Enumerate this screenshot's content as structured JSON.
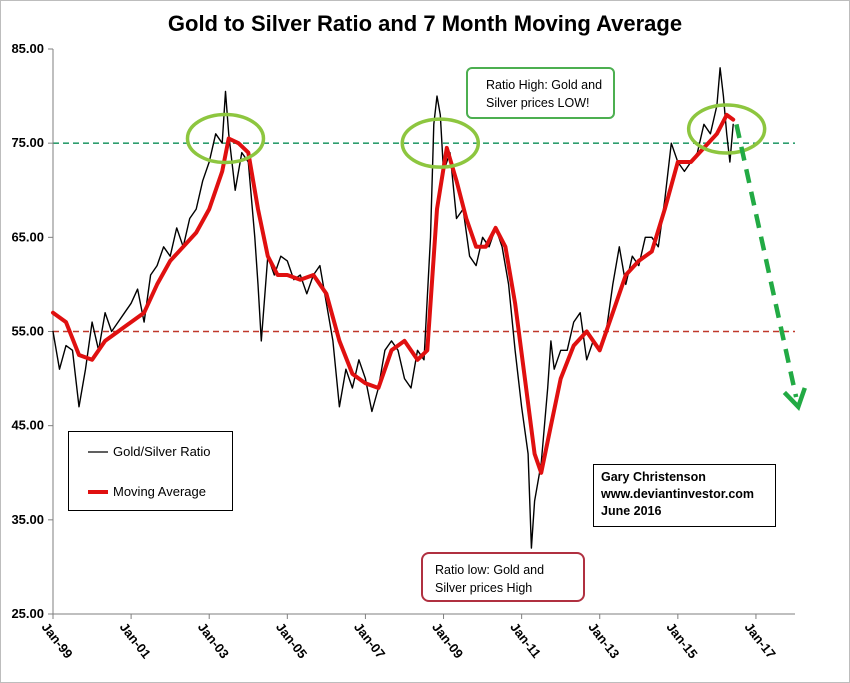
{
  "chart_data": {
    "type": "line",
    "title": "Gold to Silver Ratio and 7 Month Moving Average",
    "ylim": [
      25,
      85
    ],
    "y_ticks": [
      "25.00",
      "35.00",
      "45.00",
      "55.00",
      "65.00",
      "75.00",
      "85.00"
    ],
    "x_ticks": [
      "Jan-99",
      "Jan-01",
      "Jan-03",
      "Jan-05",
      "Jan-07",
      "Jan-09",
      "Jan-11",
      "Jan-13",
      "Jan-15",
      "Jan-17"
    ],
    "x_range": [
      "Jan-99",
      "Jan-18"
    ],
    "reference_lines": [
      {
        "value": 75,
        "color": "#2e9e6e",
        "style": "dashed"
      },
      {
        "value": 55,
        "color": "#c0392b",
        "style": "dashed"
      }
    ],
    "series": [
      {
        "name": "Gold/Silver Ratio",
        "color": "#000000",
        "points": [
          [
            "Jan-99",
            55
          ],
          [
            "Mar-99",
            51
          ],
          [
            "May-99",
            53.5
          ],
          [
            "Jul-99",
            53
          ],
          [
            "Sep-99",
            47
          ],
          [
            "Nov-99",
            51
          ],
          [
            "Jan-00",
            56
          ],
          [
            "Mar-00",
            53
          ],
          [
            "May-00",
            57
          ],
          [
            "Jul-00",
            55
          ],
          [
            "Sep-00",
            56
          ],
          [
            "Nov-00",
            57
          ],
          [
            "Jan-01",
            58
          ],
          [
            "Mar-01",
            59.5
          ],
          [
            "May-01",
            56
          ],
          [
            "Jul-01",
            61
          ],
          [
            "Sep-01",
            62
          ],
          [
            "Nov-01",
            64
          ],
          [
            "Jan-02",
            63
          ],
          [
            "Mar-02",
            66
          ],
          [
            "May-02",
            64
          ],
          [
            "Jul-02",
            67
          ],
          [
            "Sep-02",
            68
          ],
          [
            "Nov-02",
            71
          ],
          [
            "Jan-03",
            73
          ],
          [
            "Mar-03",
            76
          ],
          [
            "May-03",
            75
          ],
          [
            "Jun-03",
            80.5
          ],
          [
            "Jul-03",
            76
          ],
          [
            "Sep-03",
            70
          ],
          [
            "Nov-03",
            74
          ],
          [
            "Jan-04",
            73
          ],
          [
            "Mar-04",
            65
          ],
          [
            "Apr-04",
            60
          ],
          [
            "May-04",
            54
          ],
          [
            "Jul-04",
            63
          ],
          [
            "Sep-04",
            61
          ],
          [
            "Nov-04",
            63
          ],
          [
            "Jan-05",
            62.5
          ],
          [
            "Mar-05",
            60.5
          ],
          [
            "May-05",
            61
          ],
          [
            "Jul-05",
            59
          ],
          [
            "Sep-05",
            61
          ],
          [
            "Nov-05",
            62
          ],
          [
            "Jan-06",
            58
          ],
          [
            "Mar-06",
            54
          ],
          [
            "May-06",
            47
          ],
          [
            "Jul-06",
            51
          ],
          [
            "Sep-06",
            49
          ],
          [
            "Nov-06",
            52
          ],
          [
            "Jan-07",
            50
          ],
          [
            "Mar-07",
            46.5
          ],
          [
            "May-07",
            49
          ],
          [
            "Jul-07",
            53
          ],
          [
            "Sep-07",
            54
          ],
          [
            "Nov-07",
            53
          ],
          [
            "Jan-08",
            50
          ],
          [
            "Mar-08",
            49
          ],
          [
            "May-08",
            53
          ],
          [
            "Jul-08",
            52
          ],
          [
            "Sep-08",
            65
          ],
          [
            "Oct-08",
            77
          ],
          [
            "Nov-08",
            80
          ],
          [
            "Dec-08",
            78
          ],
          [
            "Jan-09",
            72
          ],
          [
            "Mar-09",
            74
          ],
          [
            "May-09",
            67
          ],
          [
            "Jul-09",
            68
          ],
          [
            "Sep-09",
            63
          ],
          [
            "Nov-09",
            62
          ],
          [
            "Jan-10",
            65
          ],
          [
            "Mar-10",
            64
          ],
          [
            "May-10",
            66
          ],
          [
            "Jul-10",
            64
          ],
          [
            "Sep-10",
            60
          ],
          [
            "Nov-10",
            53
          ],
          [
            "Jan-11",
            47
          ],
          [
            "Mar-11",
            42
          ],
          [
            "Apr-11",
            32
          ],
          [
            "May-11",
            37
          ],
          [
            "Jul-11",
            41
          ],
          [
            "Sep-11",
            49
          ],
          [
            "Oct-11",
            54
          ],
          [
            "Nov-11",
            51
          ],
          [
            "Jan-12",
            53
          ],
          [
            "Mar-12",
            53
          ],
          [
            "May-12",
            56
          ],
          [
            "Jul-12",
            57
          ],
          [
            "Sep-12",
            52
          ],
          [
            "Nov-12",
            54
          ],
          [
            "Jan-13",
            53
          ],
          [
            "Mar-13",
            55
          ],
          [
            "May-13",
            60
          ],
          [
            "Jul-13",
            64
          ],
          [
            "Sep-13",
            60
          ],
          [
            "Nov-13",
            63
          ],
          [
            "Jan-14",
            62
          ],
          [
            "Mar-14",
            65
          ],
          [
            "May-14",
            65
          ],
          [
            "Jul-14",
            64
          ],
          [
            "Sep-14",
            69
          ],
          [
            "Nov-14",
            75
          ],
          [
            "Jan-15",
            73
          ],
          [
            "Mar-15",
            72
          ],
          [
            "May-15",
            73
          ],
          [
            "Jul-15",
            74
          ],
          [
            "Sep-15",
            77
          ],
          [
            "Nov-15",
            76
          ],
          [
            "Jan-16",
            79
          ],
          [
            "Feb-16",
            83
          ],
          [
            "Mar-16",
            80
          ],
          [
            "Apr-16",
            76
          ],
          [
            "May-16",
            73
          ],
          [
            "Jun-16",
            77
          ]
        ]
      },
      {
        "name": "Moving Average",
        "color": "#e01010",
        "points": [
          [
            "Jan-99",
            57
          ],
          [
            "May-99",
            56
          ],
          [
            "Sep-99",
            52.5
          ],
          [
            "Jan-00",
            52
          ],
          [
            "May-00",
            54
          ],
          [
            "Sep-00",
            55
          ],
          [
            "Jan-01",
            56
          ],
          [
            "May-01",
            57
          ],
          [
            "Sep-01",
            60
          ],
          [
            "Jan-02",
            62.5
          ],
          [
            "May-02",
            64
          ],
          [
            "Sep-02",
            65.5
          ],
          [
            "Jan-03",
            68
          ],
          [
            "May-03",
            72
          ],
          [
            "Jul-03",
            75.5
          ],
          [
            "Oct-03",
            75
          ],
          [
            "Jan-04",
            74
          ],
          [
            "Apr-04",
            68
          ],
          [
            "Jul-04",
            63
          ],
          [
            "Oct-04",
            61
          ],
          [
            "Jan-05",
            61
          ],
          [
            "May-05",
            60.5
          ],
          [
            "Sep-05",
            61
          ],
          [
            "Jan-06",
            59
          ],
          [
            "May-06",
            54
          ],
          [
            "Sep-06",
            50.5
          ],
          [
            "Jan-07",
            49.5
          ],
          [
            "May-07",
            49
          ],
          [
            "Sep-07",
            53
          ],
          [
            "Jan-08",
            54
          ],
          [
            "May-08",
            52
          ],
          [
            "Aug-08",
            53
          ],
          [
            "Nov-08",
            68
          ],
          [
            "Feb-09",
            74.5
          ],
          [
            "May-09",
            71
          ],
          [
            "Aug-09",
            67
          ],
          [
            "Nov-09",
            64
          ],
          [
            "Feb-10",
            64
          ],
          [
            "May-10",
            66
          ],
          [
            "Aug-10",
            64
          ],
          [
            "Nov-10",
            58
          ],
          [
            "Feb-11",
            50
          ],
          [
            "May-11",
            42
          ],
          [
            "Jul-11",
            40
          ],
          [
            "Oct-11",
            45
          ],
          [
            "Jan-12",
            50
          ],
          [
            "May-12",
            53.5
          ],
          [
            "Sep-12",
            55
          ],
          [
            "Jan-13",
            53
          ],
          [
            "May-13",
            57
          ],
          [
            "Sep-13",
            61
          ],
          [
            "Jan-14",
            62.5
          ],
          [
            "May-14",
            63.5
          ],
          [
            "Sep-14",
            68
          ],
          [
            "Jan-15",
            73
          ],
          [
            "May-15",
            73
          ],
          [
            "Sep-15",
            74.5
          ],
          [
            "Jan-16",
            76
          ],
          [
            "Apr-16",
            78
          ],
          [
            "Jun-16",
            77.5
          ]
        ]
      }
    ],
    "highlight_circles": [
      {
        "x": "Jun-03",
        "y": 75.5
      },
      {
        "x": "Dec-08",
        "y": 75
      },
      {
        "x": "Apr-16",
        "y": 76.5
      }
    ],
    "trend_arrow": {
      "from": [
        "Jul-16",
        77
      ],
      "to": [
        "Feb-18",
        47
      ],
      "color": "#22aa44",
      "style": "dashed"
    }
  },
  "legend": {
    "items": [
      {
        "label": "Gold/Silver Ratio",
        "color": "#000000"
      },
      {
        "label": "Moving Average",
        "color": "#e01010"
      }
    ]
  },
  "credit": {
    "name": "Gary Christenson",
    "site": "www.deviantinvestor.com",
    "date": "June 2016"
  },
  "annotations": {
    "high": {
      "line1": "Ratio High:  Gold and",
      "line2": "Silver prices LOW!"
    },
    "low": {
      "line1": "Ratio low:  Gold and",
      "line2": "Silver prices High"
    }
  },
  "colors": {
    "ratio_line": "#000000",
    "moving_average": "#e01010",
    "upper_reference": "#2e9e6e",
    "lower_reference": "#c0392b",
    "circle": "#8dc63f",
    "arrow": "#22aa44"
  }
}
